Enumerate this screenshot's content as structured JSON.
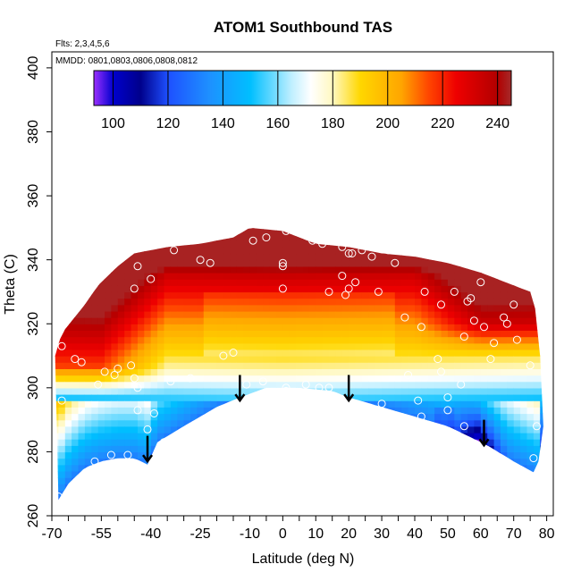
{
  "chart_data": {
    "type": "heatmap",
    "title": "ATOM1 Southbound TAS",
    "flights_note": "Flts: 2,3,4,5,6",
    "dates_note": "MMDD: 0801,0803,0806,0808,0812",
    "xlabel": "Latitude (deg N)",
    "ylabel": "Theta (C)",
    "xlim": [
      -70,
      82
    ],
    "ylim": [
      260,
      405
    ],
    "x_ticks": [
      -70,
      -55,
      -40,
      -25,
      -10,
      0,
      10,
      20,
      30,
      40,
      50,
      60,
      70,
      80
    ],
    "x_tick_labels": [
      "-70",
      "-55",
      "-40",
      "-25",
      "-10",
      "0",
      "10",
      "20",
      "30",
      "40",
      "50",
      "60",
      "70",
      "80"
    ],
    "y_ticks": [
      260,
      280,
      300,
      320,
      340,
      360,
      380,
      400
    ],
    "y_tick_labels": [
      "260",
      "280",
      "300",
      "320",
      "340",
      "360",
      "380",
      "400"
    ],
    "colorbar": {
      "range": [
        93,
        245
      ],
      "ticks": [
        100,
        120,
        140,
        160,
        180,
        200,
        220,
        240
      ],
      "tick_labels": [
        "100",
        "120",
        "140",
        "160",
        "180",
        "200",
        "220",
        "240"
      ],
      "stops": [
        {
          "v": 93,
          "color": "#9b30ff"
        },
        {
          "v": 100,
          "color": "#0000cd"
        },
        {
          "v": 110,
          "color": "#00008b"
        },
        {
          "v": 120,
          "color": "#1e50ff"
        },
        {
          "v": 135,
          "color": "#1e90ff"
        },
        {
          "v": 150,
          "color": "#00bfff"
        },
        {
          "v": 165,
          "color": "#bfefff"
        },
        {
          "v": 172,
          "color": "#ffffff"
        },
        {
          "v": 180,
          "color": "#fff8c0"
        },
        {
          "v": 190,
          "color": "#ffd700"
        },
        {
          "v": 205,
          "color": "#ffa500"
        },
        {
          "v": 215,
          "color": "#ff4500"
        },
        {
          "v": 225,
          "color": "#ee0000"
        },
        {
          "v": 240,
          "color": "#b20000"
        },
        {
          "v": 245,
          "color": "#a52a2a"
        }
      ]
    },
    "lower_boundary": [
      {
        "lat": -68,
        "theta": 265
      },
      {
        "lat": -65,
        "theta": 270
      },
      {
        "lat": -60,
        "theta": 275
      },
      {
        "lat": -55,
        "theta": 277
      },
      {
        "lat": -50,
        "theta": 278
      },
      {
        "lat": -45,
        "theta": 278
      },
      {
        "lat": -41,
        "theta": 276
      },
      {
        "lat": -38,
        "theta": 283
      },
      {
        "lat": -30,
        "theta": 288
      },
      {
        "lat": -20,
        "theta": 294
      },
      {
        "lat": -13,
        "theta": 297
      },
      {
        "lat": -5,
        "theta": 300
      },
      {
        "lat": 5,
        "theta": 300
      },
      {
        "lat": 15,
        "theta": 299
      },
      {
        "lat": 20,
        "theta": 297
      },
      {
        "lat": 30,
        "theta": 294
      },
      {
        "lat": 40,
        "theta": 291
      },
      {
        "lat": 50,
        "theta": 288
      },
      {
        "lat": 58,
        "theta": 284
      },
      {
        "lat": 62,
        "theta": 282
      },
      {
        "lat": 70,
        "theta": 277
      },
      {
        "lat": 77,
        "theta": 273
      },
      {
        "lat": 78,
        "theta": 281
      },
      {
        "lat": 79,
        "theta": 288
      }
    ],
    "upper_boundary": [
      {
        "lat": -69,
        "theta": 310
      },
      {
        "lat": -67,
        "theta": 317
      },
      {
        "lat": -60,
        "theta": 326
      },
      {
        "lat": -56,
        "theta": 332
      },
      {
        "lat": -50,
        "theta": 338
      },
      {
        "lat": -45,
        "theta": 342
      },
      {
        "lat": -35,
        "theta": 344
      },
      {
        "lat": -25,
        "theta": 345
      },
      {
        "lat": -15,
        "theta": 347
      },
      {
        "lat": -10,
        "theta": 350
      },
      {
        "lat": 0,
        "theta": 349
      },
      {
        "lat": 10,
        "theta": 345
      },
      {
        "lat": 20,
        "theta": 344
      },
      {
        "lat": 30,
        "theta": 342
      },
      {
        "lat": 40,
        "theta": 341
      },
      {
        "lat": 50,
        "theta": 339
      },
      {
        "lat": 60,
        "theta": 336
      },
      {
        "lat": 70,
        "theta": 332
      },
      {
        "lat": 75,
        "theta": 330
      },
      {
        "lat": 77,
        "theta": 323
      },
      {
        "lat": 78,
        "theta": 310
      },
      {
        "lat": 79,
        "theta": 300
      }
    ],
    "observations": [
      {
        "lat": -67,
        "theta": 313
      },
      {
        "lat": -67,
        "theta": 296
      },
      {
        "lat": -68,
        "theta": 266
      },
      {
        "lat": -63,
        "theta": 309
      },
      {
        "lat": -61,
        "theta": 308
      },
      {
        "lat": -57,
        "theta": 277
      },
      {
        "lat": -56,
        "theta": 301
      },
      {
        "lat": -54,
        "theta": 305
      },
      {
        "lat": -52,
        "theta": 279
      },
      {
        "lat": -51,
        "theta": 304
      },
      {
        "lat": -50,
        "theta": 306
      },
      {
        "lat": -47,
        "theta": 279
      },
      {
        "lat": -46,
        "theta": 307
      },
      {
        "lat": -45,
        "theta": 303
      },
      {
        "lat": -44,
        "theta": 338
      },
      {
        "lat": -45,
        "theta": 331
      },
      {
        "lat": -44,
        "theta": 300
      },
      {
        "lat": -44,
        "theta": 293
      },
      {
        "lat": -41,
        "theta": 287
      },
      {
        "lat": -40,
        "theta": 334
      },
      {
        "lat": -39,
        "theta": 292
      },
      {
        "lat": -36,
        "theta": 283
      },
      {
        "lat": -34,
        "theta": 302
      },
      {
        "lat": -33,
        "theta": 343
      },
      {
        "lat": -28,
        "theta": 303
      },
      {
        "lat": -25,
        "theta": 340
      },
      {
        "lat": -22,
        "theta": 339
      },
      {
        "lat": -20,
        "theta": 292
      },
      {
        "lat": -18,
        "theta": 310
      },
      {
        "lat": -15,
        "theta": 311
      },
      {
        "lat": -11,
        "theta": 301
      },
      {
        "lat": -9,
        "theta": 346
      },
      {
        "lat": -6,
        "theta": 302
      },
      {
        "lat": -5,
        "theta": 347
      },
      {
        "lat": 0,
        "theta": 339
      },
      {
        "lat": 0,
        "theta": 338
      },
      {
        "lat": 0,
        "theta": 331
      },
      {
        "lat": 1,
        "theta": 349
      },
      {
        "lat": 1,
        "theta": 299
      },
      {
        "lat": 1,
        "theta": 300
      },
      {
        "lat": 7,
        "theta": 301
      },
      {
        "lat": 9,
        "theta": 346
      },
      {
        "lat": 11,
        "theta": 300
      },
      {
        "lat": 12,
        "theta": 345
      },
      {
        "lat": 14,
        "theta": 330
      },
      {
        "lat": 14,
        "theta": 300
      },
      {
        "lat": 18,
        "theta": 344
      },
      {
        "lat": 18,
        "theta": 335
      },
      {
        "lat": 19,
        "theta": 329
      },
      {
        "lat": 20,
        "theta": 342
      },
      {
        "lat": 20,
        "theta": 331
      },
      {
        "lat": 21,
        "theta": 342
      },
      {
        "lat": 22,
        "theta": 333
      },
      {
        "lat": 24,
        "theta": 343
      },
      {
        "lat": 27,
        "theta": 341
      },
      {
        "lat": 29,
        "theta": 330
      },
      {
        "lat": 30,
        "theta": 295
      },
      {
        "lat": 32,
        "theta": 343
      },
      {
        "lat": 34,
        "theta": 339
      },
      {
        "lat": 37,
        "theta": 322
      },
      {
        "lat": 38,
        "theta": 304
      },
      {
        "lat": 41,
        "theta": 296
      },
      {
        "lat": 42,
        "theta": 319
      },
      {
        "lat": 42,
        "theta": 291
      },
      {
        "lat": 43,
        "theta": 330
      },
      {
        "lat": 45,
        "theta": 342
      },
      {
        "lat": 47,
        "theta": 309
      },
      {
        "lat": 48,
        "theta": 305
      },
      {
        "lat": 48,
        "theta": 326
      },
      {
        "lat": 50,
        "theta": 297
      },
      {
        "lat": 50,
        "theta": 293
      },
      {
        "lat": 52,
        "theta": 330
      },
      {
        "lat": 54,
        "theta": 301
      },
      {
        "lat": 55,
        "theta": 316
      },
      {
        "lat": 55,
        "theta": 288
      },
      {
        "lat": 56,
        "theta": 327
      },
      {
        "lat": 57,
        "theta": 328
      },
      {
        "lat": 58,
        "theta": 321
      },
      {
        "lat": 60,
        "theta": 333
      },
      {
        "lat": 61,
        "theta": 319
      },
      {
        "lat": 63,
        "theta": 309
      },
      {
        "lat": 64,
        "theta": 314
      },
      {
        "lat": 67,
        "theta": 322
      },
      {
        "lat": 68,
        "theta": 320
      },
      {
        "lat": 70,
        "theta": 326
      },
      {
        "lat": 71,
        "theta": 315
      },
      {
        "lat": 74,
        "theta": 338
      },
      {
        "lat": 75,
        "theta": 307
      },
      {
        "lat": 76,
        "theta": 278
      },
      {
        "lat": 77,
        "theta": 273
      },
      {
        "lat": 77,
        "theta": 288
      }
    ],
    "descent_arrows": [
      {
        "lat": -41,
        "theta_from": 285,
        "theta_to": 277
      },
      {
        "lat": -13,
        "theta_from": 304,
        "theta_to": 296
      },
      {
        "lat": 20,
        "theta_from": 304,
        "theta_to": 296
      },
      {
        "lat": 61,
        "theta_from": 290,
        "theta_to": 282
      }
    ]
  }
}
